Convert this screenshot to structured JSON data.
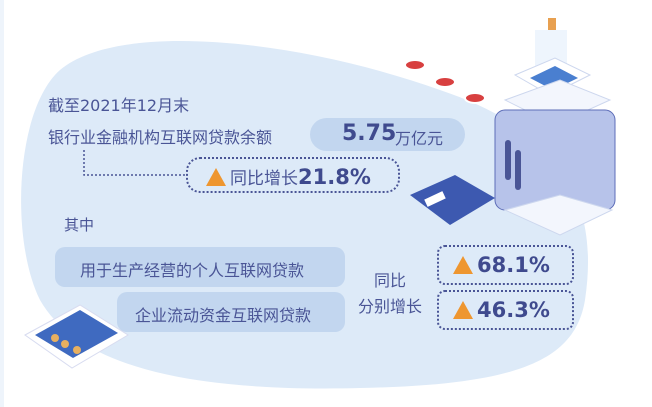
{
  "header": {
    "date_label": "截至2021年12月末",
    "balance_label": "银行业金融机构互联网贷款余额",
    "balance_value": "5.75",
    "balance_unit": "万亿元",
    "growth_label": "同比增长",
    "growth_value": "21.8%"
  },
  "breakdown": {
    "heading": "其中",
    "items": [
      {
        "label": "用于生产经营的个人互联网贷款",
        "growth": "68.1%"
      },
      {
        "label": "企业流动资金互联网贷款",
        "growth": "46.3%"
      }
    ],
    "yoy_label_line1": "同比",
    "yoy_label_line2": "分别增长"
  },
  "colors": {
    "background_blob": "#ddeaf8",
    "pill": "#c2d6ef",
    "text": "#4a5596",
    "triangle": "#ee9630"
  }
}
